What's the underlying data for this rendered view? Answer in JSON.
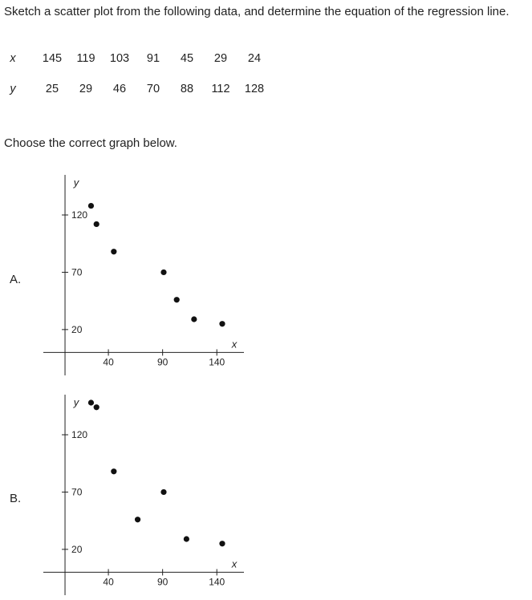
{
  "question": "Sketch a scatter plot from the following data, and determine the equation of the regression line.",
  "table": {
    "x_label": "x",
    "y_label": "y",
    "x_values": [
      "145",
      "119",
      "103",
      "91",
      "45",
      "29",
      "24"
    ],
    "y_values": [
      "25",
      "29",
      "46",
      "70",
      "88",
      "112",
      "128"
    ]
  },
  "prompt": "Choose the correct graph below.",
  "chart_data": [
    {
      "option": "A.",
      "type": "scatter",
      "xlabel": "x",
      "ylabel": "y",
      "xlim": [
        -20,
        165
      ],
      "ylim": [
        -20,
        155
      ],
      "xticks": [
        40,
        90,
        140
      ],
      "yticks": [
        20,
        70,
        120
      ],
      "points": [
        [
          24,
          128
        ],
        [
          29,
          112
        ],
        [
          45,
          88
        ],
        [
          91,
          70
        ],
        [
          103,
          46
        ],
        [
          119,
          29
        ],
        [
          145,
          25
        ]
      ],
      "grid": false
    },
    {
      "option": "B.",
      "type": "scatter",
      "xlabel": "x",
      "ylabel": "y",
      "xlim": [
        -20,
        165
      ],
      "ylim": [
        -20,
        155
      ],
      "xticks": [
        40,
        90,
        140
      ],
      "yticks": [
        20,
        70,
        120
      ],
      "points": [
        [
          24,
          148
        ],
        [
          29,
          144
        ],
        [
          45,
          88
        ],
        [
          91,
          70
        ],
        [
          67,
          46
        ],
        [
          112,
          29
        ],
        [
          145,
          25
        ]
      ],
      "grid": false
    }
  ]
}
